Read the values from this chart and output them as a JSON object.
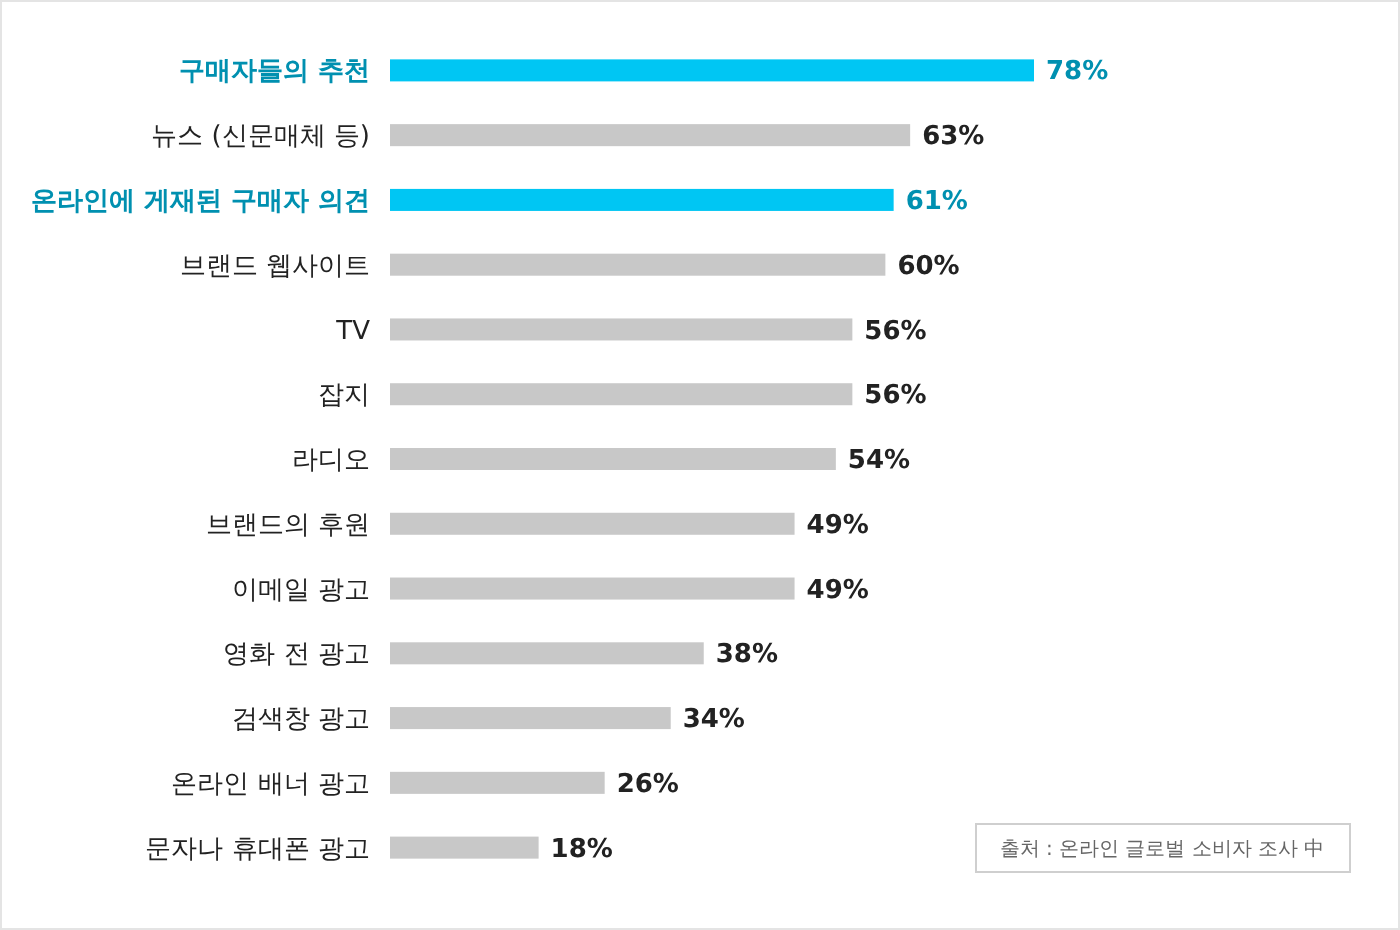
{
  "chart_data": {
    "type": "bar",
    "orientation": "horizontal",
    "categories": [
      "구매자들의 추천",
      "뉴스 (신문매체 등)",
      "온라인에 게재된 구매자 의견",
      "브랜드 웹사이트",
      "TV",
      "잡지",
      "라디오",
      "브랜드의 후원",
      "이메일 광고",
      "영화 전 광고",
      "검색창 광고",
      "온라인 배너 광고",
      "문자나 휴대폰 광고"
    ],
    "values": [
      78,
      63,
      61,
      60,
      56,
      56,
      54,
      49,
      49,
      38,
      34,
      26,
      18
    ],
    "value_labels": [
      "78%",
      "63%",
      "61%",
      "60%",
      "56%",
      "56%",
      "54%",
      "49%",
      "49%",
      "38%",
      "34%",
      "26%",
      "18%"
    ],
    "colors": [
      "#00c6f3",
      "#c8c8c8",
      "#00c6f3",
      "#c8c8c8",
      "#c8c8c8",
      "#c8c8c8",
      "#c8c8c8",
      "#c8c8c8",
      "#c8c8c8",
      "#c8c8c8",
      "#c8c8c8",
      "#c8c8c8",
      "#c8c8c8"
    ],
    "annotations": [
      "출처 : 온라인 글로벌 소비자 조사 中"
    ]
  }
}
